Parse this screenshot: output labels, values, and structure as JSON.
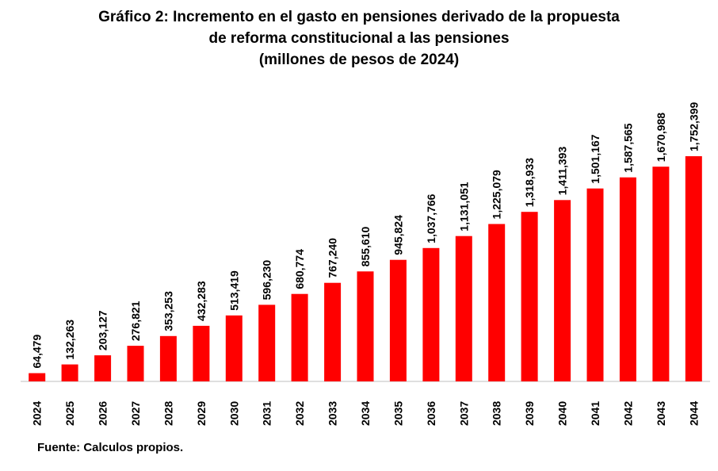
{
  "title_lines": [
    "Gráfico 2: Incremento en el gasto en pensiones derivado de la propuesta",
    "de reforma constitucional a las pensiones",
    "(millones de pesos de 2024)"
  ],
  "source": "Fuente: Calculos propios.",
  "colors": {
    "bar": "#ff0000",
    "axis": "#bfbfbf",
    "text": "#000000"
  },
  "chart_data": {
    "type": "bar",
    "title": "Gráfico 2: Incremento en el gasto en pensiones derivado de la propuesta de reforma constitucional a las pensiones (millones de pesos de 2024)",
    "xlabel": "",
    "ylabel": "",
    "categories": [
      "2024",
      "2025",
      "2026",
      "2027",
      "2028",
      "2029",
      "2030",
      "2031",
      "2032",
      "2033",
      "2034",
      "2035",
      "2036",
      "2037",
      "2038",
      "2039",
      "2040",
      "2041",
      "2042",
      "2043",
      "2044"
    ],
    "values": [
      64479,
      132263,
      203127,
      276821,
      353253,
      432283,
      513419,
      596230,
      680774,
      767240,
      855610,
      945824,
      1037766,
      1131051,
      1225079,
      1318933,
      1411393,
      1501167,
      1587565,
      1670988,
      1752399
    ],
    "value_labels": [
      "64,479",
      "132,263",
      "203,127",
      "276,821",
      "353,253",
      "432,283",
      "513,419",
      "596,230",
      "680,774",
      "767,240",
      "855,610",
      "945,824",
      "1,037,766",
      "1,131,051",
      "1,225,079",
      "1,318,933",
      "1,411,393",
      "1,501,167",
      "1,587,565",
      "1,670,988",
      "1,752,399"
    ],
    "ylim": [
      0,
      1752399
    ],
    "grid": false,
    "legend": "none",
    "label_orientation": "vertical"
  }
}
